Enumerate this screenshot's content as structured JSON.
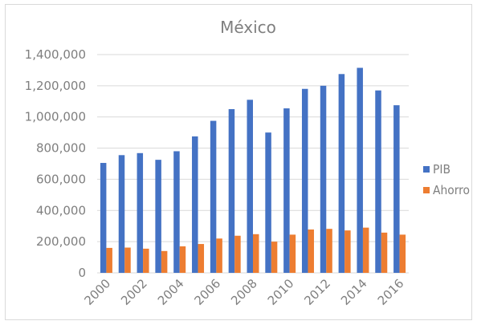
{
  "chart_data": {
    "type": "bar",
    "title": "México",
    "xlabel": "",
    "ylabel": "",
    "ylim": [
      0,
      1400000
    ],
    "yticks": [
      "0",
      "200,000",
      "400,000",
      "600,000",
      "800,000",
      "1,000,000",
      "1,200,000",
      "1,400,000"
    ],
    "grid": true,
    "legend_position": "right",
    "categories": [
      "2000",
      "2001",
      "2002",
      "2003",
      "2004",
      "2005",
      "2006",
      "2007",
      "2008",
      "2009",
      "2010",
      "2011",
      "2012",
      "2013",
      "2014",
      "2015",
      "2016"
    ],
    "xtick_labels": [
      "2000",
      "",
      "2002",
      "",
      "2004",
      "",
      "2006",
      "",
      "2008",
      "",
      "2010",
      "",
      "2012",
      "",
      "2014",
      "",
      "2016"
    ],
    "series": [
      {
        "name": "PIB",
        "color": "#4472c4",
        "values": [
          705000,
          755000,
          768000,
          725000,
          780000,
          875000,
          975000,
          1050000,
          1110000,
          900000,
          1055000,
          1180000,
          1200000,
          1275000,
          1315000,
          1170000,
          1075000
        ]
      },
      {
        "name": "Ahorro",
        "color": "#ed7d31",
        "values": [
          160000,
          162000,
          155000,
          140000,
          170000,
          185000,
          220000,
          238000,
          248000,
          200000,
          245000,
          278000,
          282000,
          272000,
          290000,
          258000,
          245000
        ]
      }
    ]
  }
}
